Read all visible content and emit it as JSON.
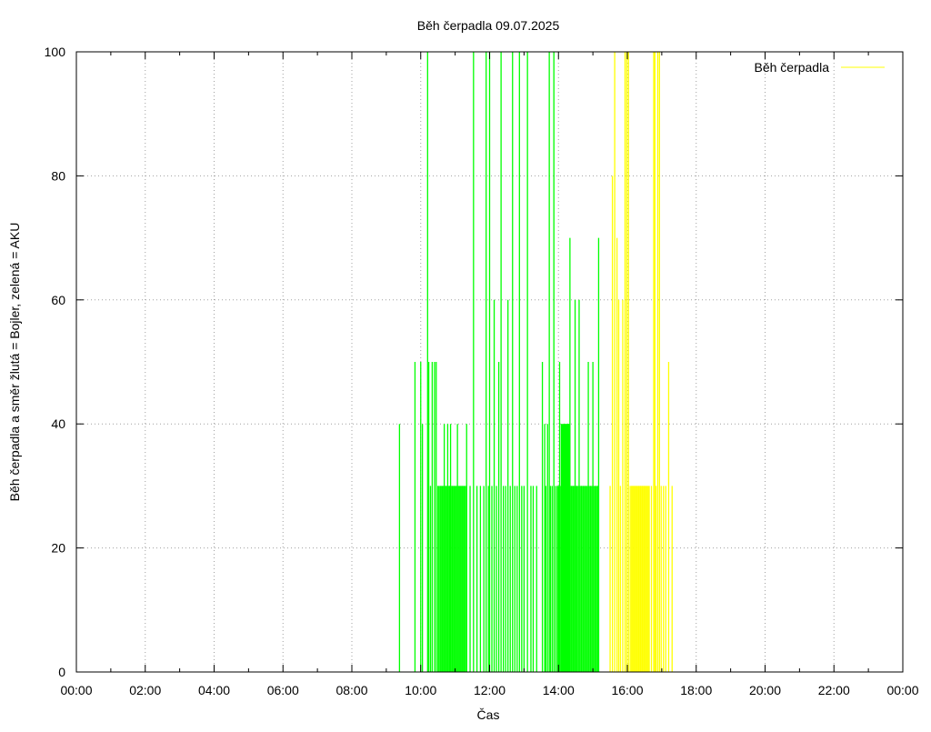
{
  "chart_data": {
    "type": "bar",
    "title": "Běh čerpadla 09.07.2025",
    "xlabel": "Čas",
    "ylabel": "Běh čerpadla a směr žlutá = Bojler, zelená = AKU",
    "ylim": [
      0,
      100
    ],
    "xlim": [
      "00:00",
      "24:00"
    ],
    "yticks": [
      0,
      20,
      40,
      60,
      80,
      100
    ],
    "xtick_labels": [
      "00:00",
      "02:00",
      "04:00",
      "06:00",
      "08:00",
      "10:00",
      "12:00",
      "14:00",
      "16:00",
      "18:00",
      "20:00",
      "22:00",
      "00:00"
    ],
    "grid": true,
    "legend": {
      "position": "top-right",
      "entries": [
        {
          "label": "Běh čerpadla",
          "color": "#ffff00"
        }
      ]
    },
    "colors": {
      "aku": "#00ff00",
      "bojler": "#ffff00"
    },
    "series": [
      {
        "direction": "AKU",
        "color": "#00ff00",
        "points": [
          [
            "09:23",
            40
          ],
          [
            "09:50",
            50
          ],
          [
            "10:00",
            50
          ],
          [
            "10:03",
            40
          ],
          [
            "10:12",
            100
          ],
          [
            "10:14",
            50
          ],
          [
            "10:17",
            30
          ],
          [
            "10:20",
            50
          ],
          [
            "10:24",
            50
          ],
          [
            "10:27",
            50
          ],
          [
            "10:30",
            30
          ],
          [
            "10:35",
            30
          ],
          [
            "10:38",
            30
          ],
          [
            "10:41",
            40
          ],
          [
            "10:44",
            30
          ],
          [
            "10:47",
            40
          ],
          [
            "10:50",
            30
          ],
          [
            "10:52",
            40
          ],
          [
            "10:55",
            30
          ],
          [
            "10:58",
            30
          ],
          [
            "11:01",
            30
          ],
          [
            "11:04",
            40
          ],
          [
            "11:07",
            30
          ],
          [
            "11:10",
            30
          ],
          [
            "11:13",
            30
          ],
          [
            "11:16",
            30
          ],
          [
            "11:20",
            40
          ],
          [
            "11:26",
            30
          ],
          [
            "11:32",
            100
          ],
          [
            "11:38",
            30
          ],
          [
            "11:44",
            30
          ],
          [
            "11:50",
            30
          ],
          [
            "11:54",
            100
          ],
          [
            "11:58",
            30
          ],
          [
            "12:00",
            100
          ],
          [
            "12:04",
            30
          ],
          [
            "12:08",
            60
          ],
          [
            "12:12",
            30
          ],
          [
            "12:16",
            50
          ],
          [
            "12:20",
            100
          ],
          [
            "12:24",
            30
          ],
          [
            "12:28",
            30
          ],
          [
            "12:32",
            60
          ],
          [
            "12:36",
            30
          ],
          [
            "12:40",
            100
          ],
          [
            "12:44",
            30
          ],
          [
            "12:48",
            30
          ],
          [
            "12:52",
            100
          ],
          [
            "12:56",
            30
          ],
          [
            "13:00",
            30
          ],
          [
            "13:06",
            100
          ],
          [
            "13:12",
            30
          ],
          [
            "13:16",
            30
          ],
          [
            "13:22",
            30
          ],
          [
            "13:32",
            50
          ],
          [
            "13:36",
            40
          ],
          [
            "13:38",
            30
          ],
          [
            "13:41",
            40
          ],
          [
            "13:44",
            100
          ],
          [
            "13:46",
            30
          ],
          [
            "13:49",
            30
          ],
          [
            "13:52",
            100
          ],
          [
            "13:55",
            30
          ],
          [
            "13:58",
            30
          ],
          [
            "14:00",
            30
          ],
          [
            "14:02",
            50
          ],
          [
            "14:05",
            40
          ],
          [
            "14:08",
            30
          ],
          [
            "14:10",
            40
          ],
          [
            "14:13",
            40
          ],
          [
            "14:16",
            40
          ],
          [
            "14:18",
            40
          ],
          [
            "14:20",
            70
          ],
          [
            "14:23",
            30
          ],
          [
            "14:26",
            30
          ],
          [
            "14:29",
            60
          ],
          [
            "14:32",
            30
          ],
          [
            "14:36",
            60
          ],
          [
            "14:40",
            30
          ],
          [
            "14:44",
            30
          ],
          [
            "14:48",
            30
          ],
          [
            "14:52",
            50
          ],
          [
            "14:56",
            30
          ],
          [
            "15:00",
            50
          ],
          [
            "15:04",
            30
          ],
          [
            "15:08",
            30
          ],
          [
            "15:10",
            70
          ]
        ]
      },
      {
        "direction": "Bojler",
        "color": "#ffff00",
        "points": [
          [
            "15:30",
            30
          ],
          [
            "15:34",
            80
          ],
          [
            "15:38",
            100
          ],
          [
            "15:42",
            70
          ],
          [
            "15:45",
            60
          ],
          [
            "15:48",
            30
          ],
          [
            "15:52",
            60
          ],
          [
            "15:56",
            100
          ],
          [
            "15:59",
            100
          ],
          [
            "16:02",
            100
          ],
          [
            "16:05",
            30
          ],
          [
            "16:08",
            30
          ],
          [
            "16:11",
            30
          ],
          [
            "16:14",
            30
          ],
          [
            "16:17",
            30
          ],
          [
            "16:20",
            30
          ],
          [
            "16:23",
            30
          ],
          [
            "16:26",
            30
          ],
          [
            "16:29",
            30
          ],
          [
            "16:32",
            30
          ],
          [
            "16:35",
            30
          ],
          [
            "16:38",
            30
          ],
          [
            "16:42",
            30
          ],
          [
            "16:46",
            100
          ],
          [
            "16:48",
            100
          ],
          [
            "16:50",
            30
          ],
          [
            "16:53",
            100
          ],
          [
            "16:56",
            100
          ],
          [
            "16:59",
            30
          ],
          [
            "17:03",
            30
          ],
          [
            "17:07",
            30
          ],
          [
            "17:12",
            50
          ],
          [
            "17:18",
            30
          ]
        ]
      }
    ]
  }
}
